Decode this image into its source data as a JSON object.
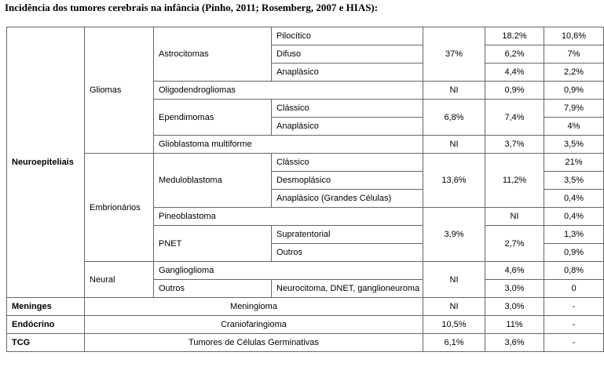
{
  "title": "Incidência dos tumores cerebrais na infância (Pinho, 2011; Rosemberg, 2007 e HIAS):",
  "table": {
    "rows": [
      [
        "Neuroepiteliais",
        "Gliomas",
        "Astrocitomas",
        "Pilocítico",
        "37%",
        "18.2%",
        "10,6%"
      ],
      [
        "Difuso",
        "6,2%",
        "7%"
      ],
      [
        "Anaplásico",
        "4,4%",
        "2,2%"
      ],
      [
        "Oligodendrogliomas",
        "NI",
        "0,9%",
        "0,9%"
      ],
      [
        "Ependimomas",
        "Clássico",
        "6,8%",
        "7,4%",
        "7,9%"
      ],
      [
        "Anaplásico",
        "4%"
      ],
      [
        "Glioblastoma multiforme",
        "NI",
        "3,7%",
        "3,5%"
      ],
      [
        "Embrionários",
        "Meduloblastoma",
        "Clássico",
        "13,6%",
        "11,2%",
        "21%"
      ],
      [
        "Desmoplásico",
        "3,5%"
      ],
      [
        "Anaplásico (Grandes Células)",
        "0,4%"
      ],
      [
        "Pineoblastoma",
        "3,9%",
        "NI",
        "0,4%"
      ],
      [
        "PNET",
        "Supratentorial",
        "2,7%",
        "1,3%"
      ],
      [
        "Outros",
        "0,9%"
      ],
      [
        "Neural",
        "Ganglioglioma",
        "NI",
        "4,6%",
        "0,8%"
      ],
      [
        "Outros",
        "Neurocitoma, DNET, ganglioneuroma",
        "3,0%",
        "0"
      ],
      [
        "Meninges",
        "Meningioma",
        "NI",
        "3,0%",
        "-"
      ],
      [
        "Endócrino",
        "Craniofaringioma",
        "10,5%",
        "11%",
        "-"
      ],
      [
        "TCG",
        "Tumores de Células Germinativas",
        "6,1%",
        "3,6%",
        "-"
      ]
    ]
  }
}
